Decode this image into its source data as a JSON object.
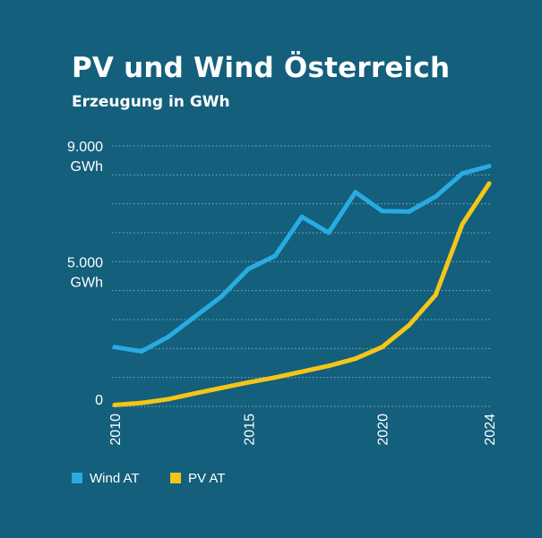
{
  "header": {
    "title": "PV und Wind Österreich",
    "subtitle": "Erzeugung in GWh"
  },
  "colors": {
    "background": "#135f7c",
    "grid": "#7fb0c6",
    "text": "#ffffff"
  },
  "chart_data": {
    "type": "line",
    "title": "PV und Wind Österreich",
    "subtitle": "Erzeugung in GWh",
    "xlabel": "",
    "ylabel": "GWh",
    "x": [
      2010,
      2011,
      2012,
      2013,
      2014,
      2015,
      2016,
      2017,
      2018,
      2019,
      2020,
      2021,
      2022,
      2023,
      2024
    ],
    "xlim": [
      2010,
      2024
    ],
    "ylim": [
      0,
      9000
    ],
    "grid": true,
    "grid_step": 1000,
    "y_ticks": [
      {
        "value": 9000,
        "line1": "9.000",
        "line2": "GWh"
      },
      {
        "value": 5000,
        "line1": "5.000",
        "line2": "GWh"
      },
      {
        "value": 0,
        "line1": "0",
        "line2": ""
      }
    ],
    "x_ticks": [
      {
        "value": 2010,
        "label": "2010"
      },
      {
        "value": 2015,
        "label": "2015"
      },
      {
        "value": 2020,
        "label": "2020"
      },
      {
        "value": 2024,
        "label": "2024"
      }
    ],
    "series": [
      {
        "name": "Wind AT",
        "color": "#29abe2",
        "values": [
          2050,
          1900,
          2400,
          3100,
          3800,
          4750,
          5200,
          6550,
          6000,
          7400,
          6750,
          6730,
          7250,
          8050,
          8300
        ]
      },
      {
        "name": "PV AT",
        "color": "#f5c518",
        "values": [
          50,
          120,
          250,
          450,
          640,
          830,
          1000,
          1200,
          1400,
          1650,
          2050,
          2800,
          3850,
          6300,
          7700
        ]
      }
    ],
    "legend_position": "bottom-left"
  }
}
